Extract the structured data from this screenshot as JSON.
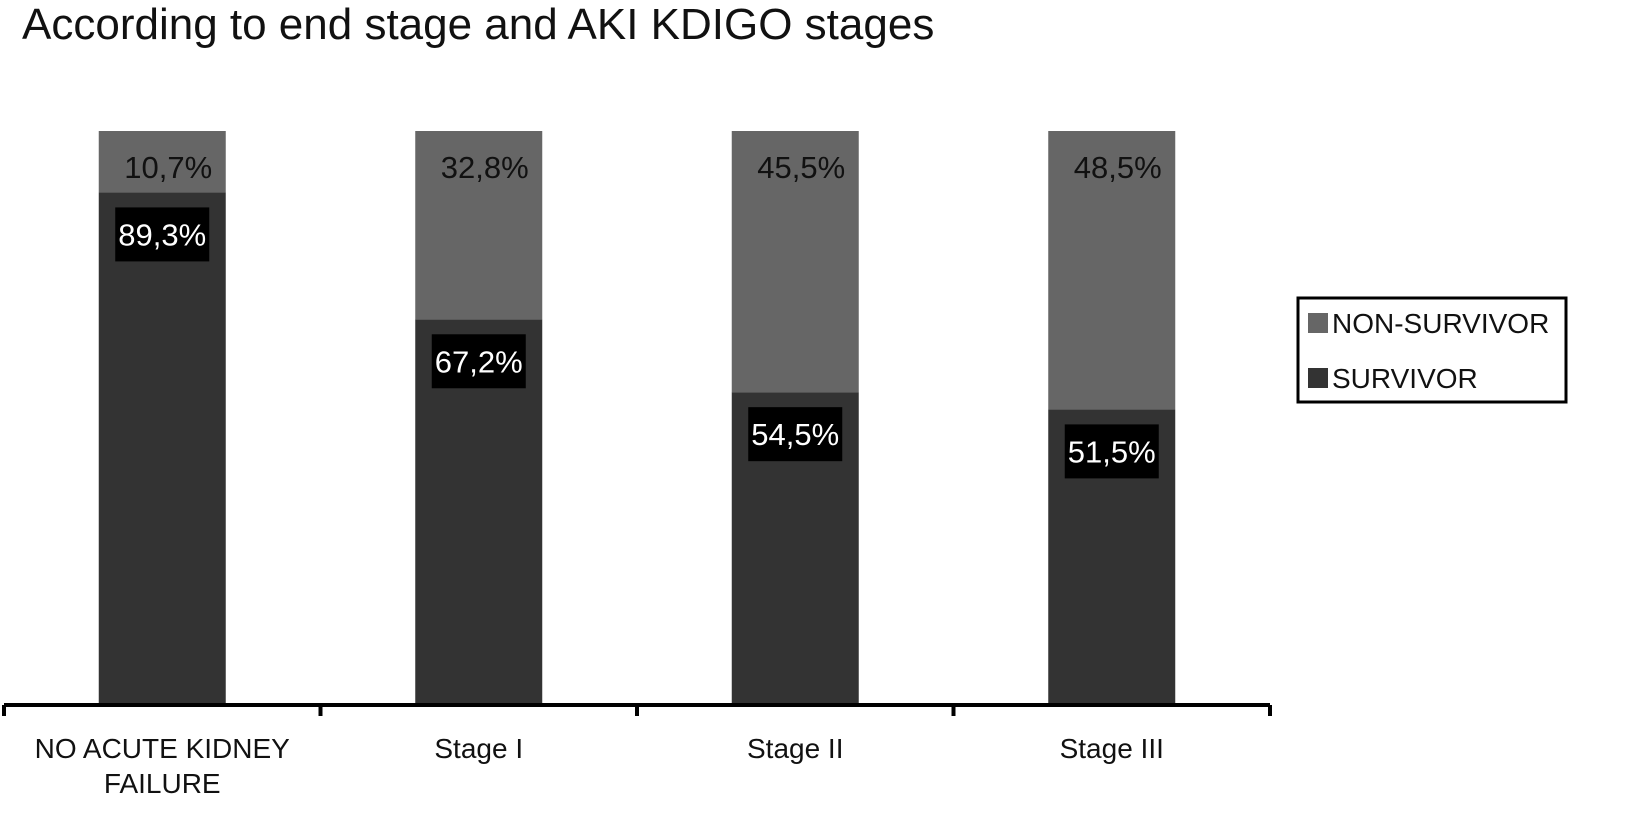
{
  "chart_data": {
    "type": "bar",
    "stacked": true,
    "percent_stacked": true,
    "title": "According to end stage and AKI KDIGO stages",
    "categories": [
      [
        "NO ACUTE KIDNEY",
        "FAILURE"
      ],
      [
        "Stage I"
      ],
      [
        "Stage II"
      ],
      [
        "Stage III"
      ]
    ],
    "series": [
      {
        "name": "SURVIVOR",
        "color": "#333333",
        "values": [
          89.3,
          67.2,
          54.5,
          51.5
        ],
        "labels": [
          "89,3%",
          "67,2%",
          "54,5%",
          "51,5%"
        ]
      },
      {
        "name": "NON-SURVIVOR",
        "color": "#666666",
        "values": [
          10.7,
          32.8,
          45.5,
          48.5
        ],
        "labels": [
          "10,7%",
          "32,8%",
          "45,5%",
          "48,5%"
        ]
      }
    ],
    "legend": {
      "position": "right",
      "order": [
        "NON-SURVIVOR",
        "SURVIVOR"
      ]
    },
    "ylim": [
      0,
      100
    ],
    "grid": false
  }
}
